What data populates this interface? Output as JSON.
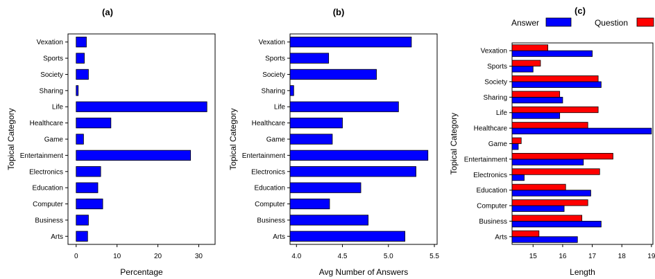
{
  "chart_data": [
    {
      "type": "bar",
      "orientation": "horizontal",
      "title": "(a)",
      "xlabel": "Percentage",
      "ylabel": "Topical Category",
      "categories": [
        "Vexation",
        "Sports",
        "Society",
        "Sharing",
        "Life",
        "Healthcare",
        "Game",
        "Entertainment",
        "Electronics",
        "Education",
        "Computer",
        "Business",
        "Arts"
      ],
      "series": [
        {
          "values": [
            2.5,
            2.0,
            3.0,
            0.5,
            32.0,
            8.5,
            1.8,
            28.0,
            6.0,
            5.3,
            6.5,
            3.0,
            2.8
          ]
        }
      ],
      "xlim": [
        -2,
        34
      ],
      "xticks": [
        0,
        10,
        20,
        30
      ],
      "colors": {
        "bar": "#0000ff"
      },
      "grid": false,
      "legend": "none"
    },
    {
      "type": "bar",
      "orientation": "horizontal",
      "title": "(b)",
      "xlabel": "Avg Number of Answers",
      "ylabel": "Topical Category",
      "categories": [
        "Vexation",
        "Sports",
        "Society",
        "Sharing",
        "Life",
        "Healthcare",
        "Game",
        "Entertainment",
        "Electronics",
        "Education",
        "Computer",
        "Business",
        "Arts"
      ],
      "series": [
        {
          "values": [
            5.25,
            4.35,
            4.87,
            3.97,
            5.11,
            4.5,
            4.39,
            5.43,
            5.3,
            4.7,
            4.36,
            4.78,
            5.18
          ]
        }
      ],
      "xlim": [
        3.93,
        5.53
      ],
      "xticks": [
        "4.0",
        "4.5",
        "5.0",
        "5.5"
      ],
      "colors": {
        "bar": "#0000ff"
      },
      "grid": false,
      "legend": "none"
    },
    {
      "type": "bar",
      "orientation": "horizontal",
      "title": "(c)",
      "xlabel": "Length",
      "ylabel": "Topical Category",
      "categories": [
        "Vexation",
        "Sports",
        "Society",
        "Sharing",
        "Life",
        "Healthcare",
        "Game",
        "Entertainment",
        "Electronics",
        "Education",
        "Computer",
        "Business",
        "Arts"
      ],
      "series": [
        {
          "name": "Answer",
          "values": [
            17.0,
            15.0,
            17.3,
            16.0,
            15.9,
            19.0,
            14.5,
            16.7,
            14.7,
            16.95,
            16.05,
            17.3,
            16.5
          ]
        },
        {
          "name": "Question",
          "values": [
            15.5,
            15.25,
            17.2,
            15.9,
            17.2,
            16.85,
            14.6,
            17.7,
            17.25,
            16.1,
            16.85,
            16.65,
            15.2
          ]
        }
      ],
      "xlim": [
        14.29,
        19.05
      ],
      "xticks": [
        15,
        16,
        17,
        18,
        19
      ],
      "colors": {
        "Answer": "#0000ff",
        "Question": "#ff0000"
      },
      "grid": false,
      "legend": "top"
    }
  ]
}
